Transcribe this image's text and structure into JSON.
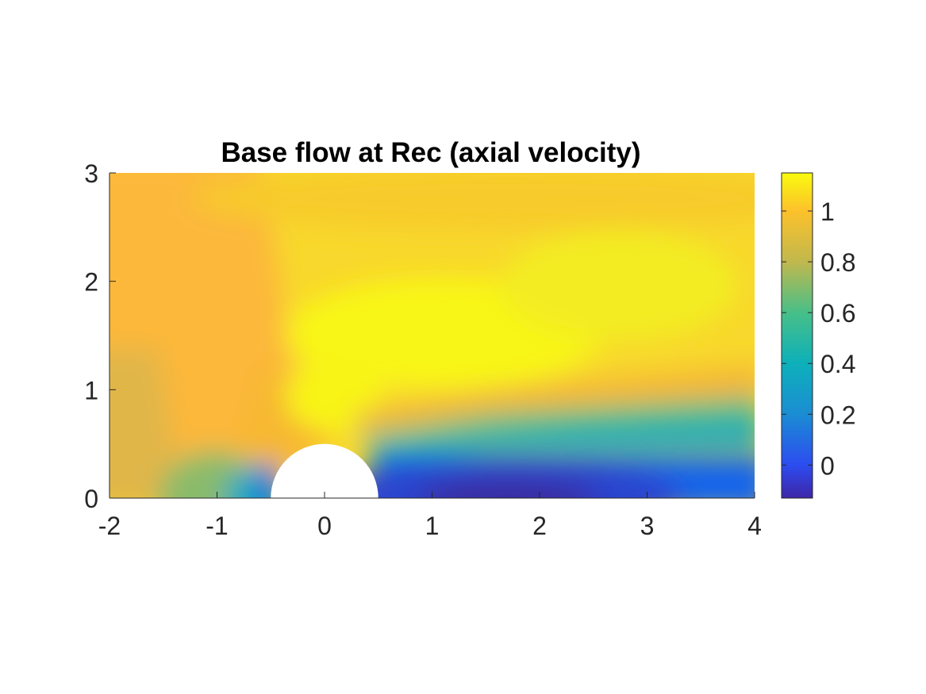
{
  "chart_data": {
    "type": "heatmap",
    "title": "Base flow at Rec (axial velocity)",
    "xlabel": "",
    "ylabel": "",
    "xlim": [
      -2,
      4
    ],
    "ylim": [
      0,
      3
    ],
    "x_ticks": [
      "-2",
      "-1",
      "0",
      "1",
      "2",
      "3",
      "4"
    ],
    "y_ticks": [
      "0",
      "1",
      "2",
      "3"
    ],
    "colorbar": {
      "range": [
        -0.13,
        1.15
      ],
      "ticks": [
        "0",
        "0.2",
        "0.4",
        "0.6",
        "0.8",
        "1"
      ],
      "colormap": "parula"
    },
    "obstacle": {
      "shape": "half-circle",
      "center_x": 0,
      "center_y": 0,
      "radius": 0.5,
      "color": "#ffffff"
    },
    "field_samples": [
      {
        "x": -2.0,
        "y": 0.0,
        "u": 0.83
      },
      {
        "x": -1.0,
        "y": 0.0,
        "u": 0.7
      },
      {
        "x": -0.6,
        "y": 0.0,
        "u": 0.3
      },
      {
        "x": -2.0,
        "y": 3.0,
        "u": 0.95
      },
      {
        "x": 0.0,
        "y": 0.6,
        "u": 0.85
      },
      {
        "x": 0.5,
        "y": 1.0,
        "u": 1.12
      },
      {
        "x": 1.5,
        "y": 1.5,
        "u": 1.14
      },
      {
        "x": 1.6,
        "y": 0.05,
        "u": -0.13
      },
      {
        "x": 1.0,
        "y": 0.3,
        "u": -0.05
      },
      {
        "x": 3.0,
        "y": 0.5,
        "u": 0.2
      },
      {
        "x": 4.0,
        "y": 0.1,
        "u": 0.05
      },
      {
        "x": 4.0,
        "y": 1.0,
        "u": 0.85
      },
      {
        "x": 4.0,
        "y": 2.5,
        "u": 1.05
      },
      {
        "x": 1.0,
        "y": 2.9,
        "u": 1.02
      }
    ],
    "grid": false,
    "legend": "colorbar-right"
  }
}
